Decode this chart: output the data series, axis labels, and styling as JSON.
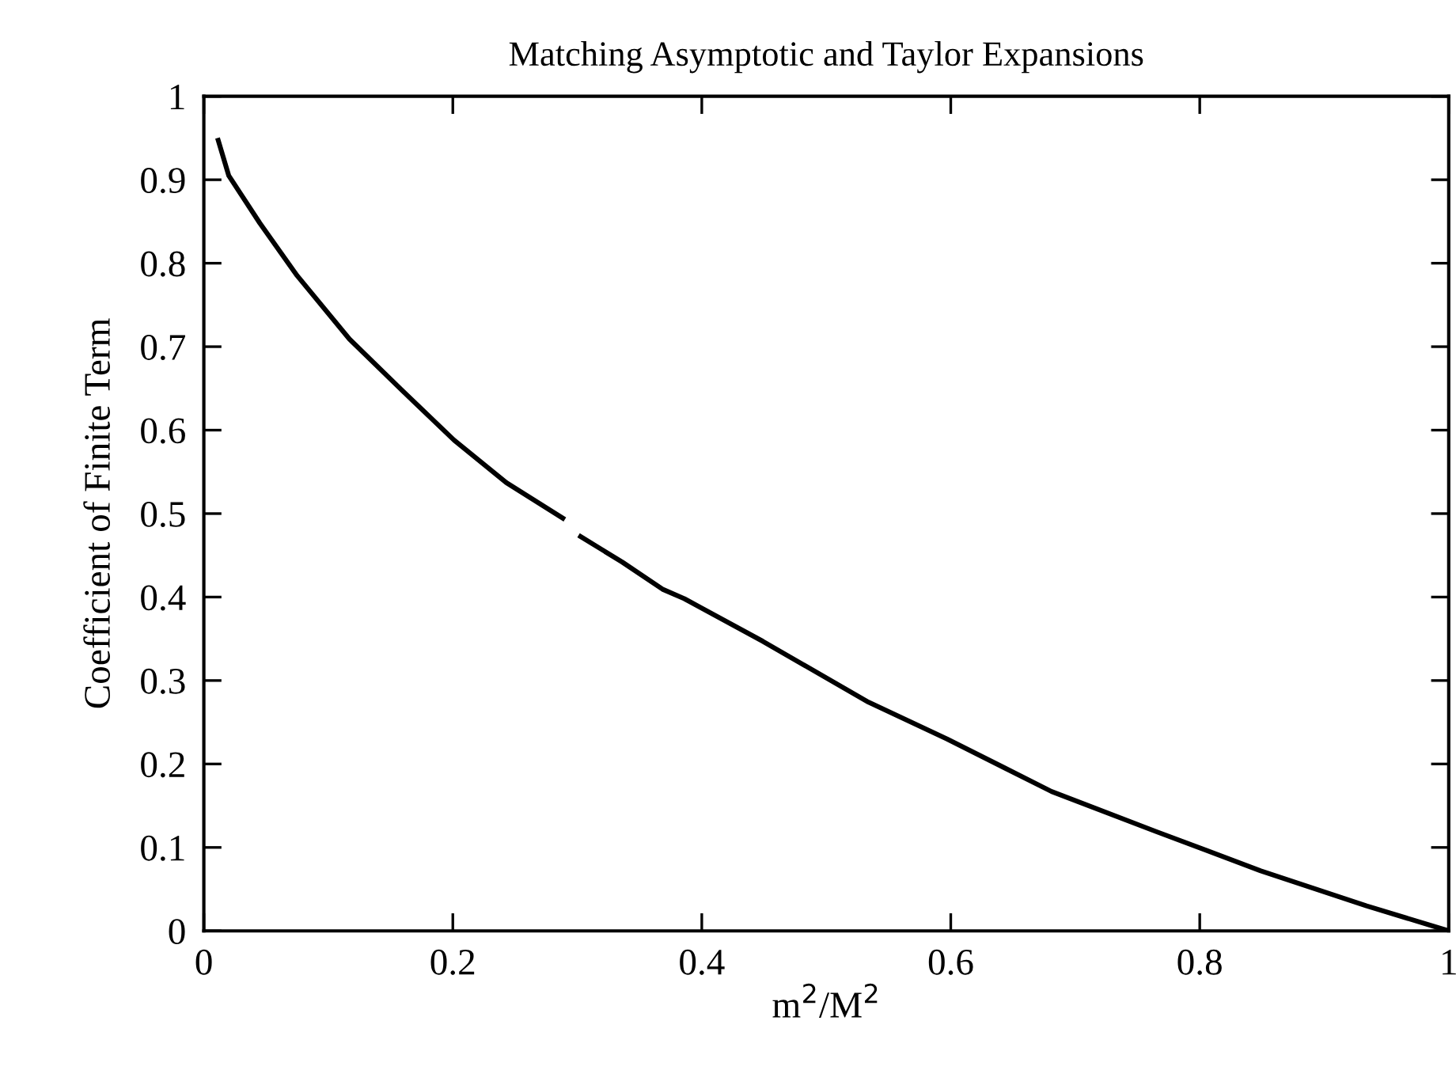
{
  "chart_data": {
    "type": "line",
    "title": "Matching Asymptotic and Taylor Expansions",
    "xlabel": "m$^{2}$/M$^{2}$",
    "ylabel": "Coefficient of Finite Term",
    "series": [
      {
        "color": "#000000",
        "x": [
          0.011,
          0.02,
          0.045,
          0.075,
          0.117,
          0.159,
          0.201,
          0.243,
          0.29
        ],
        "values": [
          0.95,
          0.905,
          0.848,
          0.785,
          0.709,
          0.648,
          0.588,
          0.537,
          0.493
        ]
      },
      {
        "color": "#000000",
        "x": [
          0.301,
          0.336,
          0.369,
          0.386,
          0.449,
          0.534,
          0.597,
          0.681,
          0.765,
          0.849,
          0.934,
          1.0
        ],
        "values": [
          0.474,
          0.442,
          0.409,
          0.398,
          0.347,
          0.274,
          0.23,
          0.167,
          0.119,
          0.072,
          0.03,
          0.0
        ]
      }
    ],
    "xlim": [
      0,
      1
    ],
    "xticks": [
      0,
      0.2,
      0.4,
      0.6,
      0.8,
      1
    ],
    "ylim": [
      0,
      1
    ],
    "yticks": [
      0,
      0.1,
      0.2,
      0.3,
      0.4,
      0.5,
      0.6,
      0.7,
      0.8,
      0.9,
      1
    ],
    "grid": false,
    "legend": false,
    "marker": "none",
    "line_style": "solid"
  }
}
